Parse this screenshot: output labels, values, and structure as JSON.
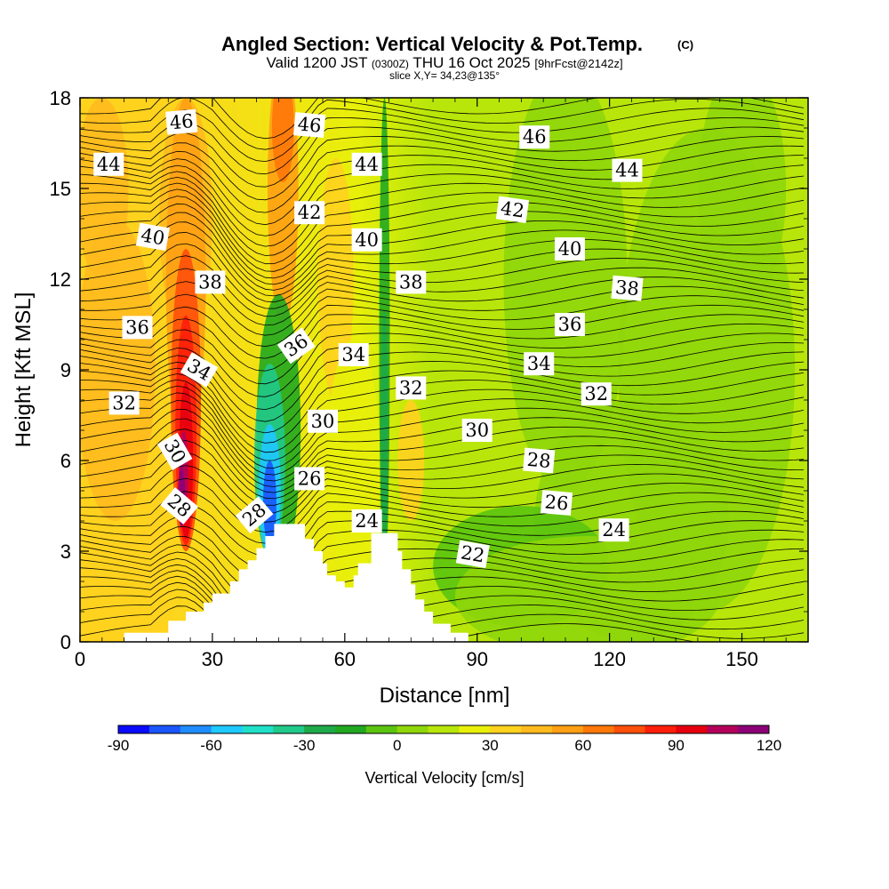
{
  "header": {
    "title": "Angled Section: Vertical Velocity & Pot.Temp.",
    "title_mark": "(C)",
    "valid_prefix": "Valid 1200 JST",
    "valid_utc": "(0300Z)",
    "valid_date": "THU 16 Oct 2025",
    "forecast": "[9hrFcst@2142z]",
    "slice": "slice X,Y= 34,23@135°"
  },
  "chart_data": {
    "type": "heatmap",
    "xlabel": "Distance [nm]",
    "ylabel": "Height [Kft MSL]",
    "xlim": [
      0,
      165
    ],
    "ylim": [
      0,
      18
    ],
    "x_ticks": [
      "0",
      "30",
      "60",
      "90",
      "120",
      "150"
    ],
    "x_tick_values": [
      0,
      30,
      60,
      90,
      120,
      150
    ],
    "y_ticks": [
      "0",
      "3",
      "6",
      "9",
      "12",
      "15",
      "18"
    ],
    "y_tick_values": [
      0,
      3,
      6,
      9,
      12,
      15,
      18
    ],
    "colorbar": {
      "label": "Vertical Velocity [cm/s]",
      "tick_labels": [
        "-90",
        "-60",
        "-30",
        "0",
        "30",
        "60",
        "90",
        "120"
      ],
      "tick_values": [
        -90,
        -60,
        -30,
        0,
        30,
        60,
        90,
        120
      ],
      "levels": [
        -90,
        -80,
        -70,
        -60,
        -50,
        -40,
        -30,
        -20,
        -10,
        0,
        10,
        20,
        30,
        40,
        50,
        60,
        70,
        80,
        90,
        100,
        110,
        120
      ],
      "colors": [
        "#0a0aff",
        "#1a55ff",
        "#1f8cff",
        "#1fc8ff",
        "#20e0c8",
        "#21c98a",
        "#1eaa4a",
        "#21a821",
        "#5bc40f",
        "#8fd60a",
        "#b8e60a",
        "#e8f00a",
        "#ffd21e",
        "#ffba1e",
        "#ffa014",
        "#ff780a",
        "#ff4f0a",
        "#ff1e0a",
        "#e6000f",
        "#b4005a",
        "#8c0078"
      ]
    },
    "terrain_profile": [
      [
        0,
        0
      ],
      [
        10,
        0
      ],
      [
        10,
        0.3
      ],
      [
        20,
        0.3
      ],
      [
        20,
        0.7
      ],
      [
        24,
        0.7
      ],
      [
        24,
        1
      ],
      [
        28,
        1
      ],
      [
        28,
        1.3
      ],
      [
        30,
        1.3
      ],
      [
        30,
        1.6
      ],
      [
        34,
        1.6
      ],
      [
        34,
        2
      ],
      [
        36,
        2
      ],
      [
        36,
        2.4
      ],
      [
        38,
        2.4
      ],
      [
        38,
        2.7
      ],
      [
        40,
        2.7
      ],
      [
        40,
        3.1
      ],
      [
        42,
        3.1
      ],
      [
        42,
        3.5
      ],
      [
        44,
        3.5
      ],
      [
        44,
        3.9
      ],
      [
        51,
        3.9
      ],
      [
        51,
        3.4
      ],
      [
        53,
        3.4
      ],
      [
        53,
        3.0
      ],
      [
        55,
        3.0
      ],
      [
        55,
        2.6
      ],
      [
        56,
        2.6
      ],
      [
        56,
        2.2
      ],
      [
        58,
        2.2
      ],
      [
        58,
        2.0
      ],
      [
        60,
        2.0
      ],
      [
        60,
        1.8
      ],
      [
        62,
        1.8
      ],
      [
        62,
        2.2
      ],
      [
        63,
        2.2
      ],
      [
        63,
        2.6
      ],
      [
        66,
        2.6
      ],
      [
        66,
        3.6
      ],
      [
        72,
        3.6
      ],
      [
        72,
        3.0
      ],
      [
        73,
        3.0
      ],
      [
        73,
        2.4
      ],
      [
        75,
        2.4
      ],
      [
        75,
        1.9
      ],
      [
        76,
        1.9
      ],
      [
        76,
        1.4
      ],
      [
        78,
        1.4
      ],
      [
        78,
        1.0
      ],
      [
        80,
        1.0
      ],
      [
        80,
        0.6
      ],
      [
        84,
        0.6
      ],
      [
        84,
        0.3
      ],
      [
        88,
        0.3
      ],
      [
        88,
        0
      ],
      [
        165,
        0
      ]
    ],
    "contour_labels": [
      {
        "text": "46",
        "x": 23,
        "y": 17.2,
        "rot": -5
      },
      {
        "text": "46",
        "x": 52,
        "y": 17.1,
        "rot": 5
      },
      {
        "text": "46",
        "x": 103,
        "y": 16.7,
        "rot": 0
      },
      {
        "text": "44",
        "x": 6.5,
        "y": 15.8,
        "rot": 0
      },
      {
        "text": "44",
        "x": 65,
        "y": 15.8,
        "rot": 0
      },
      {
        "text": "44",
        "x": 124,
        "y": 15.6,
        "rot": 0
      },
      {
        "text": "42",
        "x": 52,
        "y": 14.2,
        "rot": 0
      },
      {
        "text": "42",
        "x": 98,
        "y": 14.3,
        "rot": 8
      },
      {
        "text": "40",
        "x": 16.5,
        "y": 13.4,
        "rot": 10
      },
      {
        "text": "40",
        "x": 65,
        "y": 13.3,
        "rot": 0
      },
      {
        "text": "40",
        "x": 111,
        "y": 13.0,
        "rot": 0
      },
      {
        "text": "38",
        "x": 29.5,
        "y": 11.9,
        "rot": 0
      },
      {
        "text": "38",
        "x": 75,
        "y": 11.9,
        "rot": 0
      },
      {
        "text": "38",
        "x": 124,
        "y": 11.7,
        "rot": 5
      },
      {
        "text": "36",
        "x": 13,
        "y": 10.4,
        "rot": 0
      },
      {
        "text": "36",
        "x": 49,
        "y": 9.8,
        "rot": -35
      },
      {
        "text": "36",
        "x": 111,
        "y": 10.5,
        "rot": 0
      },
      {
        "text": "34",
        "x": 27,
        "y": 9.0,
        "rot": 30
      },
      {
        "text": "34",
        "x": 62,
        "y": 9.5,
        "rot": 0
      },
      {
        "text": "34",
        "x": 104,
        "y": 9.2,
        "rot": 0
      },
      {
        "text": "32",
        "x": 10,
        "y": 7.9,
        "rot": 0
      },
      {
        "text": "32",
        "x": 75,
        "y": 8.4,
        "rot": 0
      },
      {
        "text": "32",
        "x": 117,
        "y": 8.2,
        "rot": 0
      },
      {
        "text": "30",
        "x": 21.5,
        "y": 6.3,
        "rot": 60
      },
      {
        "text": "30",
        "x": 55,
        "y": 7.3,
        "rot": 0
      },
      {
        "text": "30",
        "x": 90,
        "y": 7.0,
        "rot": 0
      },
      {
        "text": "28",
        "x": 22.5,
        "y": 4.5,
        "rot": 40
      },
      {
        "text": "28",
        "x": 39.5,
        "y": 4.2,
        "rot": -40
      },
      {
        "text": "28",
        "x": 104,
        "y": 6.0,
        "rot": 5
      },
      {
        "text": "26",
        "x": 52,
        "y": 5.4,
        "rot": 0
      },
      {
        "text": "26",
        "x": 108,
        "y": 4.6,
        "rot": 5
      },
      {
        "text": "24",
        "x": 65,
        "y": 4.0,
        "rot": 0
      },
      {
        "text": "24",
        "x": 121,
        "y": 3.7,
        "rot": 0
      },
      {
        "text": "22",
        "x": 89,
        "y": 2.9,
        "rot": 10
      }
    ]
  }
}
